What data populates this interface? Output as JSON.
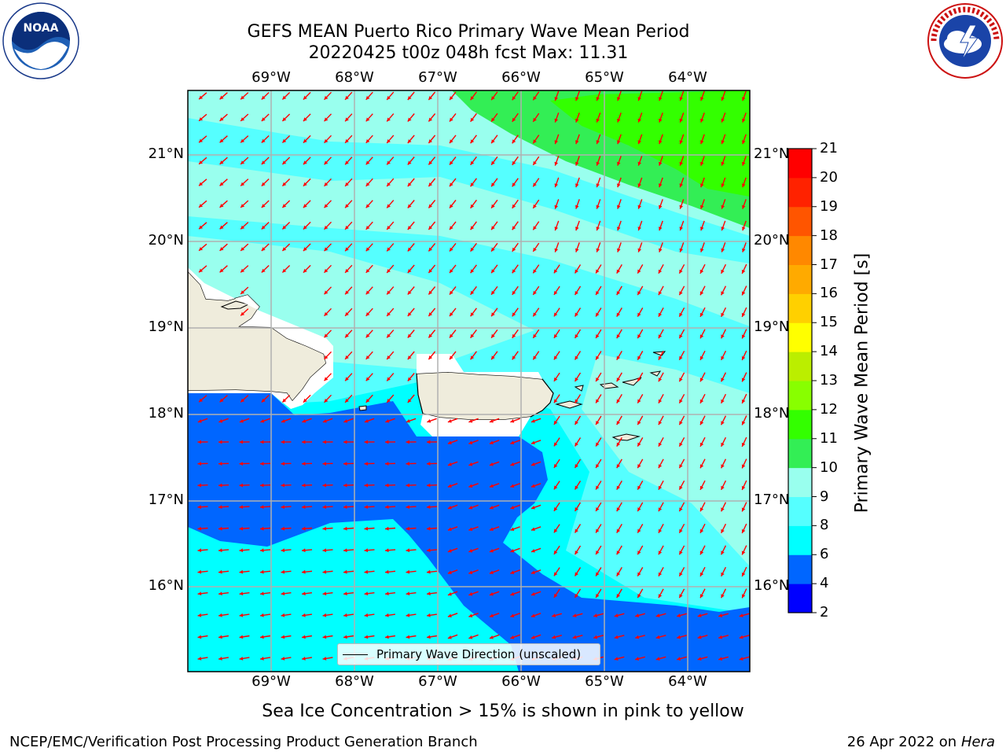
{
  "title_line1": "GEFS MEAN Puerto Rico Primary Wave Mean Period",
  "title_line2": "20220425 t00z 048h fcst   Max: 11.31",
  "lon_labels": [
    "69°W",
    "68°W",
    "67°W",
    "66°W",
    "65°W",
    "64°W"
  ],
  "lat_labels": [
    "21°N",
    "20°N",
    "19°N",
    "18°N",
    "17°N",
    "16°N"
  ],
  "legend_label": "Primary Wave Direction (unscaled)",
  "colorbar": {
    "label": "Primary Wave Mean Period [s]",
    "ticks": [
      "21",
      "20",
      "19",
      "18",
      "17",
      "16",
      "15",
      "14",
      "13",
      "12",
      "11",
      "10",
      "9",
      "8",
      "6",
      "4",
      "2"
    ],
    "colors": [
      "#0000ff",
      "#0066ff",
      "#00ffff",
      "#55ffff",
      "#99ffee",
      "#33ee55",
      "#33ff00",
      "#88ff00",
      "#bbee00",
      "#ffff00",
      "#ffd000",
      "#ffaa00",
      "#ff8800",
      "#ff5500",
      "#ff2200",
      "#ff0000"
    ]
  },
  "field_colors": {
    "lt_4_6": "#0066ff",
    "6_8": "#00ffff",
    "8_9": "#55ffff",
    "9_10": "#99ffee",
    "10_11": "#33ee55",
    "11_12": "#33ff00",
    "land": "#efecdc",
    "arrow": "#ff0000"
  },
  "footnote": "Sea Ice Concentration > 15% is shown in pink to yellow",
  "footer_left": "NCEP/EMC/Verification Post Processing Product Generation Branch",
  "footer_date": "26 Apr 2022 on ",
  "footer_machine": "Hera",
  "logos": {
    "left": "noaa-logo-icon",
    "right": "national-weather-service-logo-icon"
  }
}
